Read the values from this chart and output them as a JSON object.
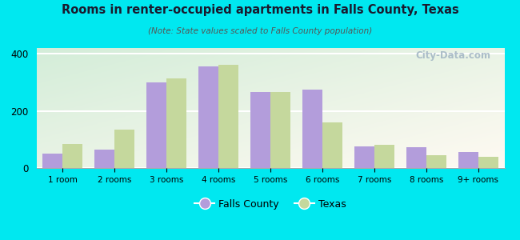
{
  "title": "Rooms in renter-occupied apartments in Falls County, Texas",
  "subtitle": "(Note: State values scaled to Falls County population)",
  "categories": [
    "1 room",
    "2 rooms",
    "3 rooms",
    "4 rooms",
    "5 rooms",
    "6 rooms",
    "7 rooms",
    "8 rooms",
    "9+ rooms"
  ],
  "falls_county": [
    50,
    65,
    300,
    355,
    265,
    275,
    75,
    72,
    55
  ],
  "texas": [
    85,
    135,
    315,
    360,
    265,
    160,
    80,
    45,
    40
  ],
  "falls_county_color": "#b39ddb",
  "texas_color": "#c5d89d",
  "background_outer": "#00e8f0",
  "ylim": [
    0,
    420
  ],
  "yticks": [
    0,
    200,
    400
  ],
  "bar_width": 0.38,
  "legend_falls_county": "Falls County",
  "legend_texas": "Texas",
  "watermark": "City-Data.com"
}
